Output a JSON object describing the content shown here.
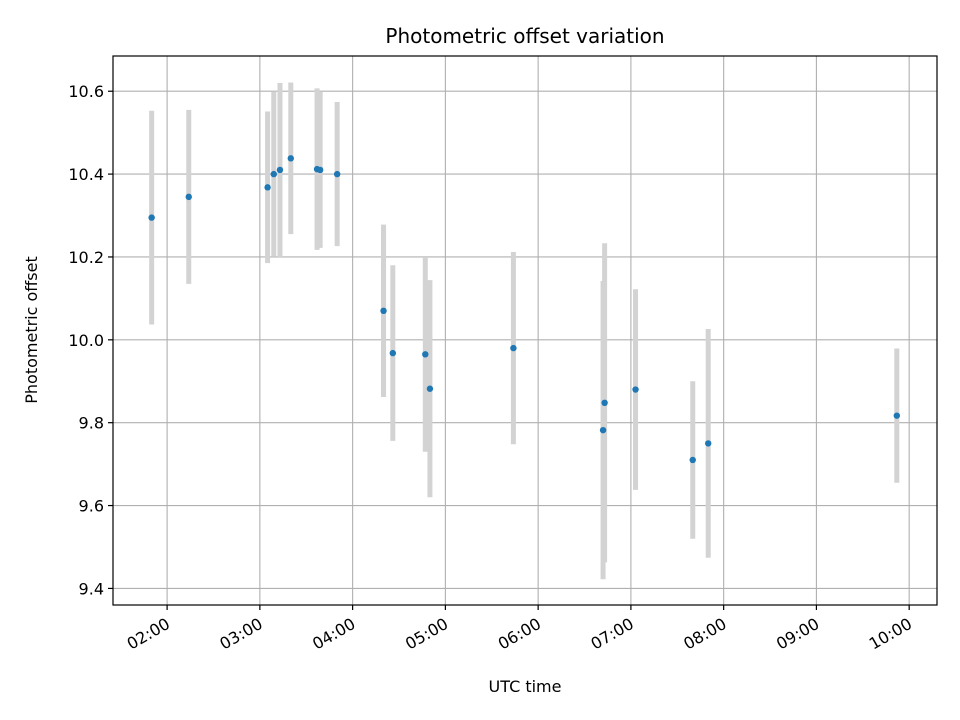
{
  "chart_data": {
    "type": "scatter",
    "title": "Photometric offset variation",
    "xlabel": "UTC time",
    "ylabel": "Photometric offset",
    "xlim": [
      "01:25",
      "10:18"
    ],
    "ylim": [
      9.36,
      10.685
    ],
    "x_ticks": [
      "02:00",
      "03:00",
      "04:00",
      "05:00",
      "06:00",
      "07:00",
      "08:00",
      "09:00",
      "10:00"
    ],
    "y_ticks": [
      9.4,
      9.6,
      9.8,
      10.0,
      10.2,
      10.4,
      10.6
    ],
    "y_tick_labels": [
      "9.4",
      "9.6",
      "9.8",
      "10.0",
      "10.2",
      "10.4",
      "10.6"
    ],
    "grid": true,
    "marker_color": "#1f77b4",
    "errorbar_color": "#d3d3d3",
    "points": [
      {
        "x": "01:50",
        "y": 10.295,
        "err": 0.258
      },
      {
        "x": "02:14",
        "y": 10.345,
        "err": 0.21
      },
      {
        "x": "03:05",
        "y": 10.368,
        "err": 0.183
      },
      {
        "x": "03:09",
        "y": 10.4,
        "err": 0.198
      },
      {
        "x": "03:13",
        "y": 10.41,
        "err": 0.21
      },
      {
        "x": "03:20",
        "y": 10.438,
        "err": 0.183
      },
      {
        "x": "03:37",
        "y": 10.412,
        "err": 0.195
      },
      {
        "x": "03:39",
        "y": 10.41,
        "err": 0.188
      },
      {
        "x": "03:50",
        "y": 10.4,
        "err": 0.174
      },
      {
        "x": "04:20",
        "y": 10.07,
        "err": 0.208
      },
      {
        "x": "04:26",
        "y": 9.968,
        "err": 0.212
      },
      {
        "x": "04:47",
        "y": 9.965,
        "err": 0.235
      },
      {
        "x": "04:50",
        "y": 9.882,
        "err": 0.262
      },
      {
        "x": "05:44",
        "y": 9.98,
        "err": 0.232
      },
      {
        "x": "06:42",
        "y": 9.782,
        "err": 0.36
      },
      {
        "x": "06:43",
        "y": 9.848,
        "err": 0.385
      },
      {
        "x": "07:03",
        "y": 9.88,
        "err": 0.242
      },
      {
        "x": "07:40",
        "y": 9.71,
        "err": 0.19
      },
      {
        "x": "07:50",
        "y": 9.75,
        "err": 0.276
      },
      {
        "x": "09:52",
        "y": 9.817,
        "err": 0.162
      }
    ]
  }
}
